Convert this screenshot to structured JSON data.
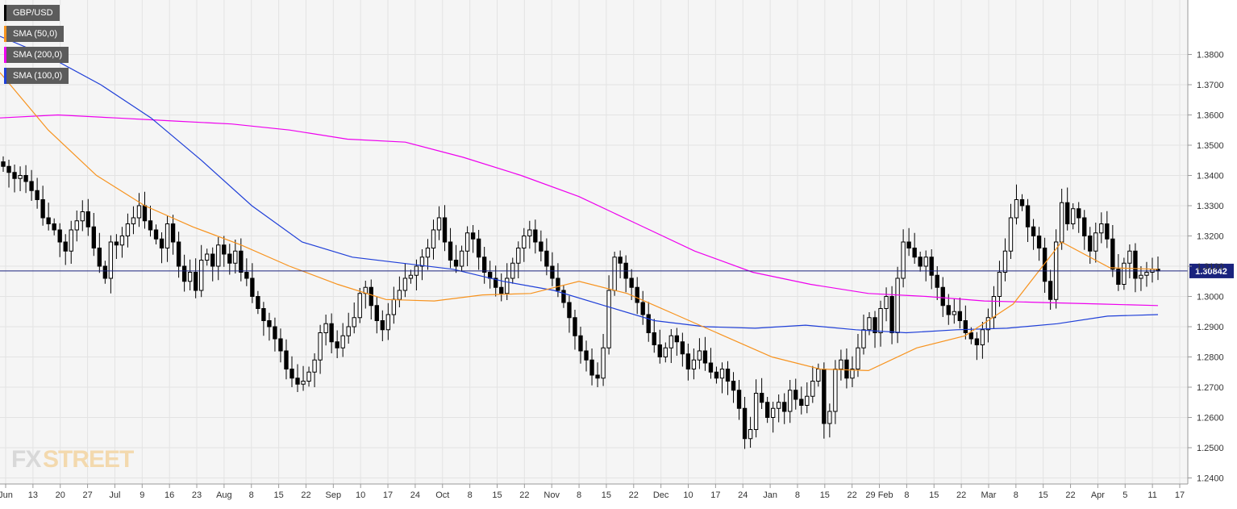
{
  "chart_data": {
    "type": "candlestick",
    "symbol": "GBP/USD",
    "legend": [
      {
        "label": "GBP/USD",
        "color": "#000000"
      },
      {
        "label": "SMA (50,0)",
        "color": "#f7931e"
      },
      {
        "label": "SMA (200,0)",
        "color": "#ee00ee"
      },
      {
        "label": "SMA (100,0)",
        "color": "#1f3fd8"
      }
    ],
    "legend_position": "top-left",
    "ylim": [
      1.238,
      1.398
    ],
    "y_ticks": [
      "1.2400",
      "1.2500",
      "1.2600",
      "1.2700",
      "1.2800",
      "1.2900",
      "1.3000",
      "1.3100",
      "1.3200",
      "1.3300",
      "1.3400",
      "1.3500",
      "1.3600",
      "1.3700",
      "1.3800"
    ],
    "x_ticks": [
      "Jun",
      "13",
      "20",
      "27",
      "Jul",
      "9",
      "16",
      "23",
      "Aug",
      "8",
      "15",
      "22",
      "Sep",
      "10",
      "17",
      "24",
      "Oct",
      "8",
      "15",
      "22",
      "Nov",
      "8",
      "15",
      "22",
      "Dec",
      "10",
      "17",
      "24",
      "Jan",
      "8",
      "15",
      "22",
      "29 Feb",
      "8",
      "15",
      "22",
      "Mar",
      "8",
      "15",
      "22",
      "Apr",
      "5",
      "11",
      "17"
    ],
    "current_price": "1.30842",
    "grid": true,
    "colors": {
      "up": "#ffffff",
      "down": "#000000",
      "price_line": "#1a237e",
      "price_badge": "#1a237e",
      "grid": "#e3e3e3",
      "plot_bg": "#f5f5f5"
    },
    "sma_50": [
      1.374,
      1.355,
      1.34,
      1.33,
      1.323,
      1.317,
      1.31,
      1.304,
      1.299,
      1.2985,
      1.3005,
      1.301,
      1.305,
      1.301,
      1.294,
      1.287,
      1.28,
      1.276,
      1.2755,
      1.283,
      1.287,
      1.2975,
      1.318,
      1.3095,
      1.309
    ],
    "sma_100": [
      1.386,
      1.379,
      1.37,
      1.359,
      1.345,
      1.33,
      1.318,
      1.313,
      1.311,
      1.309,
      1.305,
      1.302,
      1.297,
      1.292,
      1.29,
      1.2895,
      1.2905,
      1.289,
      1.288,
      1.289,
      1.2895,
      1.291,
      1.2935,
      1.294
    ],
    "sma_200": [
      1.359,
      1.36,
      1.359,
      1.358,
      1.357,
      1.355,
      1.352,
      1.351,
      1.346,
      1.34,
      1.333,
      1.324,
      1.315,
      1.308,
      1.304,
      1.301,
      1.3,
      1.2985,
      1.298,
      1.2975,
      1.297
    ],
    "closes": [
      1.343,
      1.341,
      1.339,
      1.34,
      1.338,
      1.335,
      1.332,
      1.326,
      1.324,
      1.322,
      1.318,
      1.315,
      1.322,
      1.325,
      1.328,
      1.323,
      1.316,
      1.31,
      1.306,
      1.318,
      1.317,
      1.32,
      1.324,
      1.326,
      1.33,
      1.325,
      1.322,
      1.319,
      1.316,
      1.324,
      1.318,
      1.31,
      1.305,
      1.308,
      1.302,
      1.312,
      1.314,
      1.31,
      1.317,
      1.314,
      1.311,
      1.315,
      1.308,
      1.306,
      1.3,
      1.296,
      1.292,
      1.29,
      1.286,
      1.282,
      1.276,
      1.273,
      1.271,
      1.272,
      1.275,
      1.279,
      1.288,
      1.291,
      1.285,
      1.283,
      1.287,
      1.29,
      1.293,
      1.301,
      1.303,
      1.297,
      1.292,
      1.289,
      1.294,
      1.299,
      1.302,
      1.306,
      1.307,
      1.31,
      1.313,
      1.316,
      1.322,
      1.326,
      1.318,
      1.312,
      1.31,
      1.315,
      1.321,
      1.319,
      1.313,
      1.308,
      1.306,
      1.303,
      1.301,
      1.306,
      1.311,
      1.316,
      1.32,
      1.322,
      1.318,
      1.315,
      1.31,
      1.306,
      1.302,
      1.298,
      1.293,
      1.287,
      1.282,
      1.279,
      1.274,
      1.273,
      1.283,
      1.302,
      1.313,
      1.311,
      1.306,
      1.303,
      1.298,
      1.294,
      1.288,
      1.284,
      1.28,
      1.283,
      1.287,
      1.285,
      1.281,
      1.276,
      1.279,
      1.282,
      1.278,
      1.275,
      1.273,
      1.276,
      1.272,
      1.269,
      1.263,
      1.253,
      1.256,
      1.268,
      1.265,
      1.26,
      1.263,
      1.265,
      1.262,
      1.269,
      1.266,
      1.264,
      1.267,
      1.272,
      1.276,
      1.258,
      1.262,
      1.276,
      1.279,
      1.273,
      1.276,
      1.283,
      1.289,
      1.293,
      1.288,
      1.296,
      1.3,
      1.288,
      1.306,
      1.318,
      1.316,
      1.313,
      1.31,
      1.313,
      1.307,
      1.303,
      1.297,
      1.294,
      1.295,
      1.292,
      1.288,
      1.286,
      1.284,
      1.289,
      1.293,
      1.3,
      1.308,
      1.315,
      1.326,
      1.332,
      1.33,
      1.323,
      1.32,
      1.316,
      1.305,
      1.299,
      1.318,
      1.331,
      1.324,
      1.329,
      1.326,
      1.32,
      1.315,
      1.321,
      1.324,
      1.319,
      1.309,
      1.304,
      1.311,
      1.315,
      1.306,
      1.307,
      1.308,
      1.309,
      1.30842
    ]
  }
}
